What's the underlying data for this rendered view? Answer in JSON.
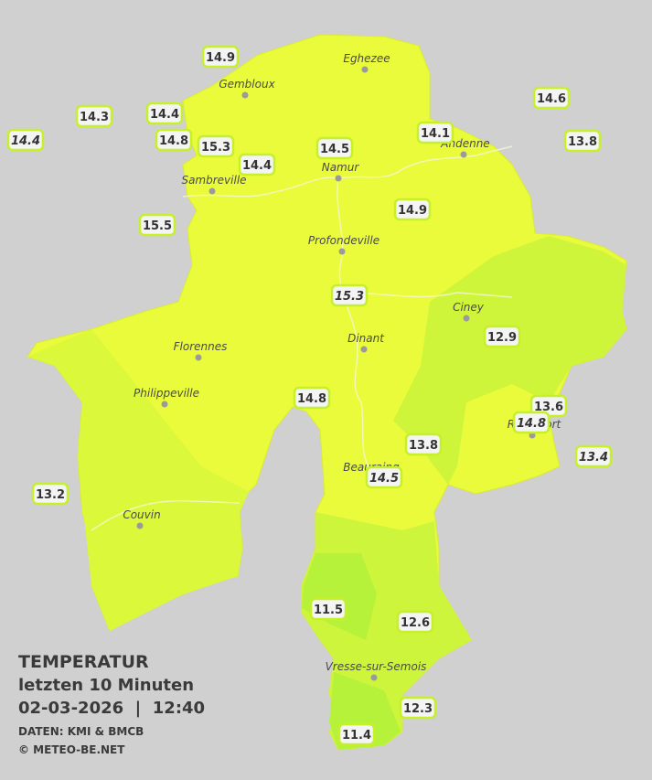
{
  "legend": {
    "title": "TEMPERATUR",
    "subtitle": "letzten 10 Minuten",
    "datetime": "02-03-2026  |  12:40",
    "source": "DATEN: KMI & BMCB",
    "copyright": "© METEO-BE.NET"
  },
  "cities": [
    {
      "name": "Eghezee"
    },
    {
      "name": "Gembloux"
    },
    {
      "name": "Andenne"
    },
    {
      "name": "Namur"
    },
    {
      "name": "Sambreville"
    },
    {
      "name": "Profondeville"
    },
    {
      "name": "Ciney"
    },
    {
      "name": "Dinant"
    },
    {
      "name": "Florennes"
    },
    {
      "name": "Philippeville"
    },
    {
      "name": "Rochefort"
    },
    {
      "name": "Beauraing"
    },
    {
      "name": "Couvin"
    },
    {
      "name": "Vresse-sur-Semois"
    }
  ],
  "stations": [
    {
      "label": "14.9",
      "italic": false
    },
    {
      "label": "14.3",
      "italic": false
    },
    {
      "label": "14.4",
      "italic": true
    },
    {
      "label": "14.4",
      "italic": false
    },
    {
      "label": "14.8",
      "italic": false
    },
    {
      "label": "15.3",
      "italic": false
    },
    {
      "label": "14.4",
      "italic": false
    },
    {
      "label": "14.5",
      "italic": false
    },
    {
      "label": "14.1",
      "italic": false
    },
    {
      "label": "14.6",
      "italic": false
    },
    {
      "label": "13.8",
      "italic": false
    },
    {
      "label": "15.5",
      "italic": false
    },
    {
      "label": "14.9",
      "italic": false
    },
    {
      "label": "15.3",
      "italic": true
    },
    {
      "label": "12.9",
      "italic": false
    },
    {
      "label": "14.8",
      "italic": false
    },
    {
      "label": "13.6",
      "italic": false
    },
    {
      "label": "14.8",
      "italic": true
    },
    {
      "label": "13.4",
      "italic": true
    },
    {
      "label": "13.8",
      "italic": false
    },
    {
      "label": "14.5",
      "italic": true
    },
    {
      "label": "13.2",
      "italic": false
    },
    {
      "label": "11.5",
      "italic": false
    },
    {
      "label": "12.6",
      "italic": false
    },
    {
      "label": "12.3",
      "italic": false
    },
    {
      "label": "11.4",
      "italic": false
    }
  ]
}
